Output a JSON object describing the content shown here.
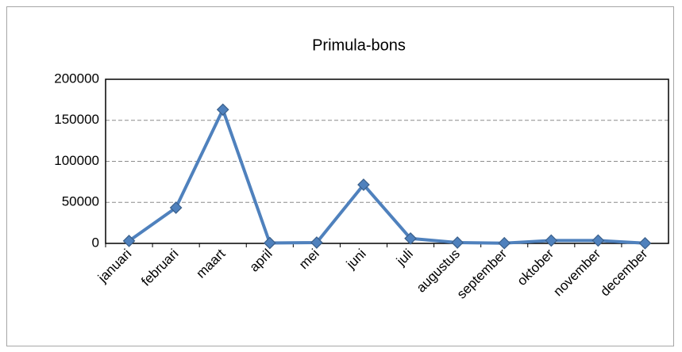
{
  "chart_data": {
    "type": "line",
    "title": "Primula-bons",
    "categories": [
      "januari",
      "februari",
      "maart",
      "april",
      "mei",
      "juni",
      "juli",
      "augustus",
      "september",
      "oktober",
      "november",
      "december"
    ],
    "series": [
      {
        "name": "Primula-bons",
        "color": "#4f81bd",
        "values": [
          3000,
          43500,
          163000,
          500,
          1000,
          71500,
          6000,
          1000,
          300,
          3500,
          3500,
          200
        ]
      }
    ],
    "ylim": [
      0,
      200000
    ],
    "yticks": [
      0,
      50000,
      100000,
      150000,
      200000
    ],
    "grid": true
  }
}
